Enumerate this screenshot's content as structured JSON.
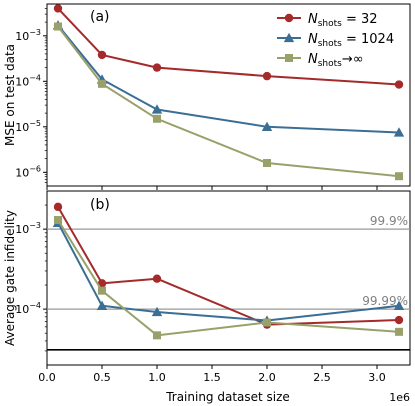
{
  "chart_data": [
    {
      "type": "line",
      "panel_label": "(a)",
      "ylabel": "MSE on test data",
      "xlabel": "",
      "yscale": "log",
      "ylim": [
        5e-07,
        0.005
      ],
      "xlim": [
        0,
        3300000
      ],
      "y_ticks": [
        {
          "value": 1e-06,
          "base": "10",
          "exp": "−6"
        },
        {
          "value": 1e-05,
          "base": "10",
          "exp": "−5"
        },
        {
          "value": 0.0001,
          "base": "10",
          "exp": "−4"
        },
        {
          "value": 0.001,
          "base": "10",
          "exp": "−3"
        }
      ],
      "x": [
        100000,
        500000,
        1000000,
        2000000,
        3200000
      ],
      "series": [
        {
          "key": "n32",
          "values": [
            0.004,
            0.00038,
            0.0002,
            0.00013,
            8.5e-05
          ],
          "color": "#a52a2a",
          "marker": "circle"
        },
        {
          "key": "n1024",
          "values": [
            0.0017,
            0.00011,
            2.4e-05,
            1e-05,
            7.5e-06
          ],
          "color": "#3a6e95",
          "marker": "triangle"
        },
        {
          "key": "ninf",
          "values": [
            0.0016,
            8.8e-05,
            1.5e-05,
            1.6e-06,
            8.2e-07
          ],
          "color": "#9aa06a",
          "marker": "square"
        }
      ],
      "legend": {
        "placement": "top-right",
        "entries": [
          {
            "key": "n32",
            "main": "N",
            "sub": "shots",
            "tail": " = 32"
          },
          {
            "key": "n1024",
            "main": "N",
            "sub": "shots",
            "tail": " = 1024"
          },
          {
            "key": "ninf",
            "main": "N",
            "sub": "shots",
            "tail": "→∞"
          }
        ]
      }
    },
    {
      "type": "line",
      "panel_label": "(b)",
      "ylabel": "Average gate infidelity",
      "xlabel": "Training dataset size",
      "x_offset_label": "1e6",
      "yscale": "log",
      "ylim": [
        2e-05,
        0.003
      ],
      "xlim": [
        0,
        3300000
      ],
      "y_ticks": [
        {
          "value": 0.0001,
          "base": "10",
          "exp": "−4"
        },
        {
          "value": 0.001,
          "base": "10",
          "exp": "−3"
        }
      ],
      "x_ticks": [
        {
          "value": 0,
          "label": "0.0"
        },
        {
          "value": 500000,
          "label": "0.5"
        },
        {
          "value": 1000000,
          "label": "1.0"
        },
        {
          "value": 1500000,
          "label": "1.5"
        },
        {
          "value": 2000000,
          "label": "2.0"
        },
        {
          "value": 2500000,
          "label": "2.5"
        },
        {
          "value": 3000000,
          "label": "3.0"
        }
      ],
      "reference_lines": [
        {
          "value": 0.001,
          "label": "99.9%",
          "color": "#999999"
        },
        {
          "value": 0.0001,
          "label": "99.99%",
          "color": "#999999"
        },
        {
          "value": 3.1e-05,
          "label": "",
          "color": "#000000"
        }
      ],
      "x": [
        100000,
        500000,
        1000000,
        2000000,
        3200000
      ],
      "series": [
        {
          "key": "n32",
          "values": [
            0.0019,
            0.00021,
            0.00024,
            6.4e-05,
            7.3e-05
          ],
          "color": "#a52a2a",
          "marker": "circle"
        },
        {
          "key": "n1024",
          "values": [
            0.0012,
            0.00011,
            9.2e-05,
            7.2e-05,
            0.00011
          ],
          "color": "#3a6e95",
          "marker": "triangle"
        },
        {
          "key": "ninf",
          "values": [
            0.0013,
            0.00017,
            4.7e-05,
            6.8e-05,
            5.2e-05
          ],
          "color": "#9aa06a",
          "marker": "square"
        }
      ]
    }
  ]
}
